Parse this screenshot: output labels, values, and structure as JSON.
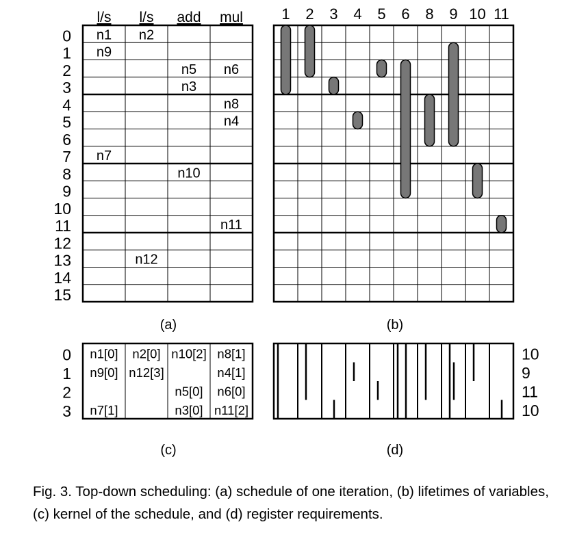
{
  "schedule": {
    "columns": [
      "l/s",
      "l/s",
      "add",
      "mul"
    ],
    "row_labels": [
      "0",
      "1",
      "2",
      "3",
      "4",
      "5",
      "6",
      "7",
      "8",
      "9",
      "10",
      "11",
      "12",
      "13",
      "14",
      "15"
    ],
    "cells": [
      {
        "row": 0,
        "col": 0,
        "text": "n1"
      },
      {
        "row": 0,
        "col": 1,
        "text": "n2"
      },
      {
        "row": 1,
        "col": 0,
        "text": "n9"
      },
      {
        "row": 2,
        "col": 2,
        "text": "n5"
      },
      {
        "row": 2,
        "col": 3,
        "text": "n6"
      },
      {
        "row": 3,
        "col": 2,
        "text": "n3"
      },
      {
        "row": 4,
        "col": 3,
        "text": "n8"
      },
      {
        "row": 5,
        "col": 3,
        "text": "n4"
      },
      {
        "row": 7,
        "col": 0,
        "text": "n7"
      },
      {
        "row": 8,
        "col": 2,
        "text": "n10"
      },
      {
        "row": 11,
        "col": 3,
        "text": "n11"
      },
      {
        "row": 13,
        "col": 1,
        "text": "n12"
      }
    ],
    "label": "(a)"
  },
  "lifetimes": {
    "columns": [
      "1",
      "2",
      "3",
      "4",
      "5",
      "6",
      "8",
      "9",
      "10",
      "11"
    ],
    "bars": [
      {
        "var": "1",
        "start": 0,
        "end": 4
      },
      {
        "var": "2",
        "start": 0,
        "end": 3
      },
      {
        "var": "3",
        "start": 3,
        "end": 4
      },
      {
        "var": "4",
        "start": 5,
        "end": 6
      },
      {
        "var": "5",
        "start": 2,
        "end": 3
      },
      {
        "var": "6",
        "start": 2,
        "end": 10
      },
      {
        "var": "8",
        "start": 4,
        "end": 7
      },
      {
        "var": "9",
        "start": 1,
        "end": 7
      },
      {
        "var": "10",
        "start": 8,
        "end": 10
      },
      {
        "var": "11",
        "start": 11,
        "end": 12
      }
    ],
    "label": "(b)"
  },
  "kernel": {
    "row_labels": [
      "0",
      "1",
      "2",
      "3"
    ],
    "rows": [
      [
        "n1[0]",
        "n2[0]",
        "n10[2]",
        "n8[1]"
      ],
      [
        "n9[0]",
        "n12[3]",
        "",
        "n4[1]"
      ],
      [
        "",
        "",
        "n5[0]",
        "n6[0]"
      ],
      [
        "n7[1]",
        "",
        "n3[0]",
        "n11[2]"
      ]
    ],
    "label": "(c)"
  },
  "registers": {
    "counts": [
      "10",
      "9",
      "11",
      "10"
    ],
    "label": "(d)"
  },
  "caption": "Fig. 3. Top-down scheduling: (a) schedule of one iteration, (b) lifetimes of variables, (c) kernel of the schedule, and (d) register requirements."
}
